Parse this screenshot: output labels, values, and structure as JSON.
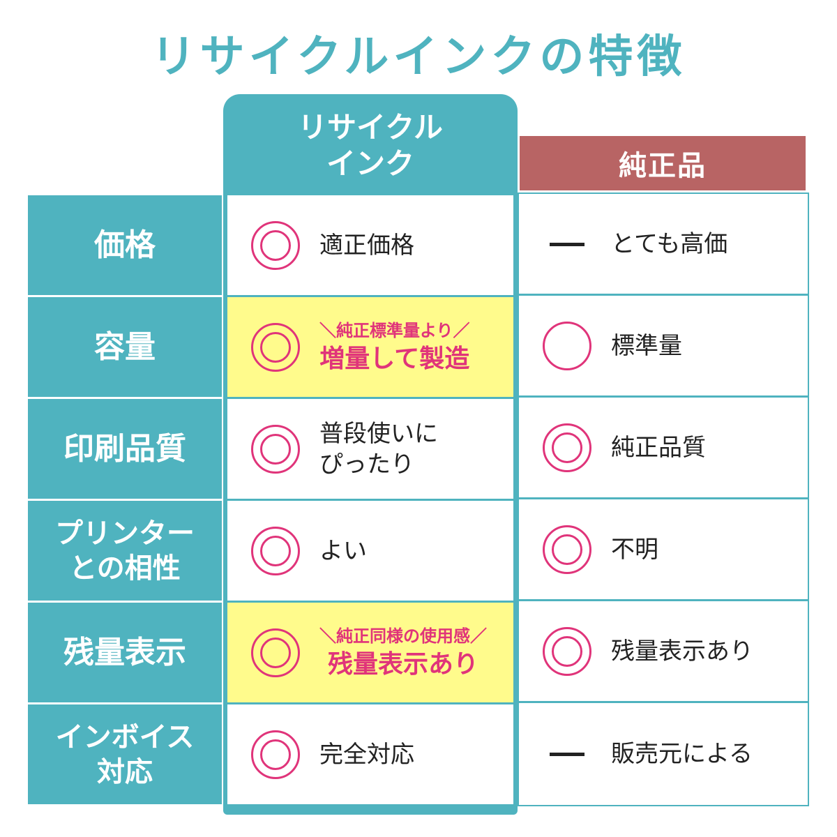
{
  "title": "リサイクルインクの特徴",
  "headers": {
    "recycle": [
      "リサイクル",
      "インク"
    ],
    "genuine": "純正品"
  },
  "colors": {
    "teal": "#4fb3bf",
    "genuine_header": "#b86464",
    "accent_pink": "#e0347a",
    "highlight": "#fffb8c"
  },
  "rows": [
    {
      "label": [
        "価格"
      ],
      "recycle": {
        "mark": "double-circle",
        "text": [
          "適正価格"
        ]
      },
      "genuine": {
        "mark": "dash",
        "text": "とても高価"
      }
    },
    {
      "label": [
        "容量"
      ],
      "recycle": {
        "mark": "double-circle",
        "highlight": true,
        "sub": "＼純正標準量より／",
        "text": [
          "増量して製造"
        ]
      },
      "genuine": {
        "mark": "circle",
        "text": "標準量"
      }
    },
    {
      "label": [
        "印刷品質"
      ],
      "recycle": {
        "mark": "double-circle",
        "text": [
          "普段使いに",
          "ぴったり"
        ]
      },
      "genuine": {
        "mark": "double-circle",
        "text": "純正品質"
      }
    },
    {
      "label": [
        "プリンター",
        "との相性"
      ],
      "recycle": {
        "mark": "double-circle",
        "text": [
          "よい"
        ]
      },
      "genuine": {
        "mark": "double-circle",
        "text": "不明"
      }
    },
    {
      "label": [
        "残量表示"
      ],
      "recycle": {
        "mark": "double-circle",
        "highlight": true,
        "sub": "＼純正同様の使用感／",
        "text": [
          "残量表示あり"
        ]
      },
      "genuine": {
        "mark": "double-circle",
        "text": "残量表示あり"
      }
    },
    {
      "label": [
        "インボイス",
        "対応"
      ],
      "recycle": {
        "mark": "double-circle",
        "text": [
          "完全対応"
        ]
      },
      "genuine": {
        "mark": "dash",
        "text": "販売元による"
      }
    }
  ]
}
